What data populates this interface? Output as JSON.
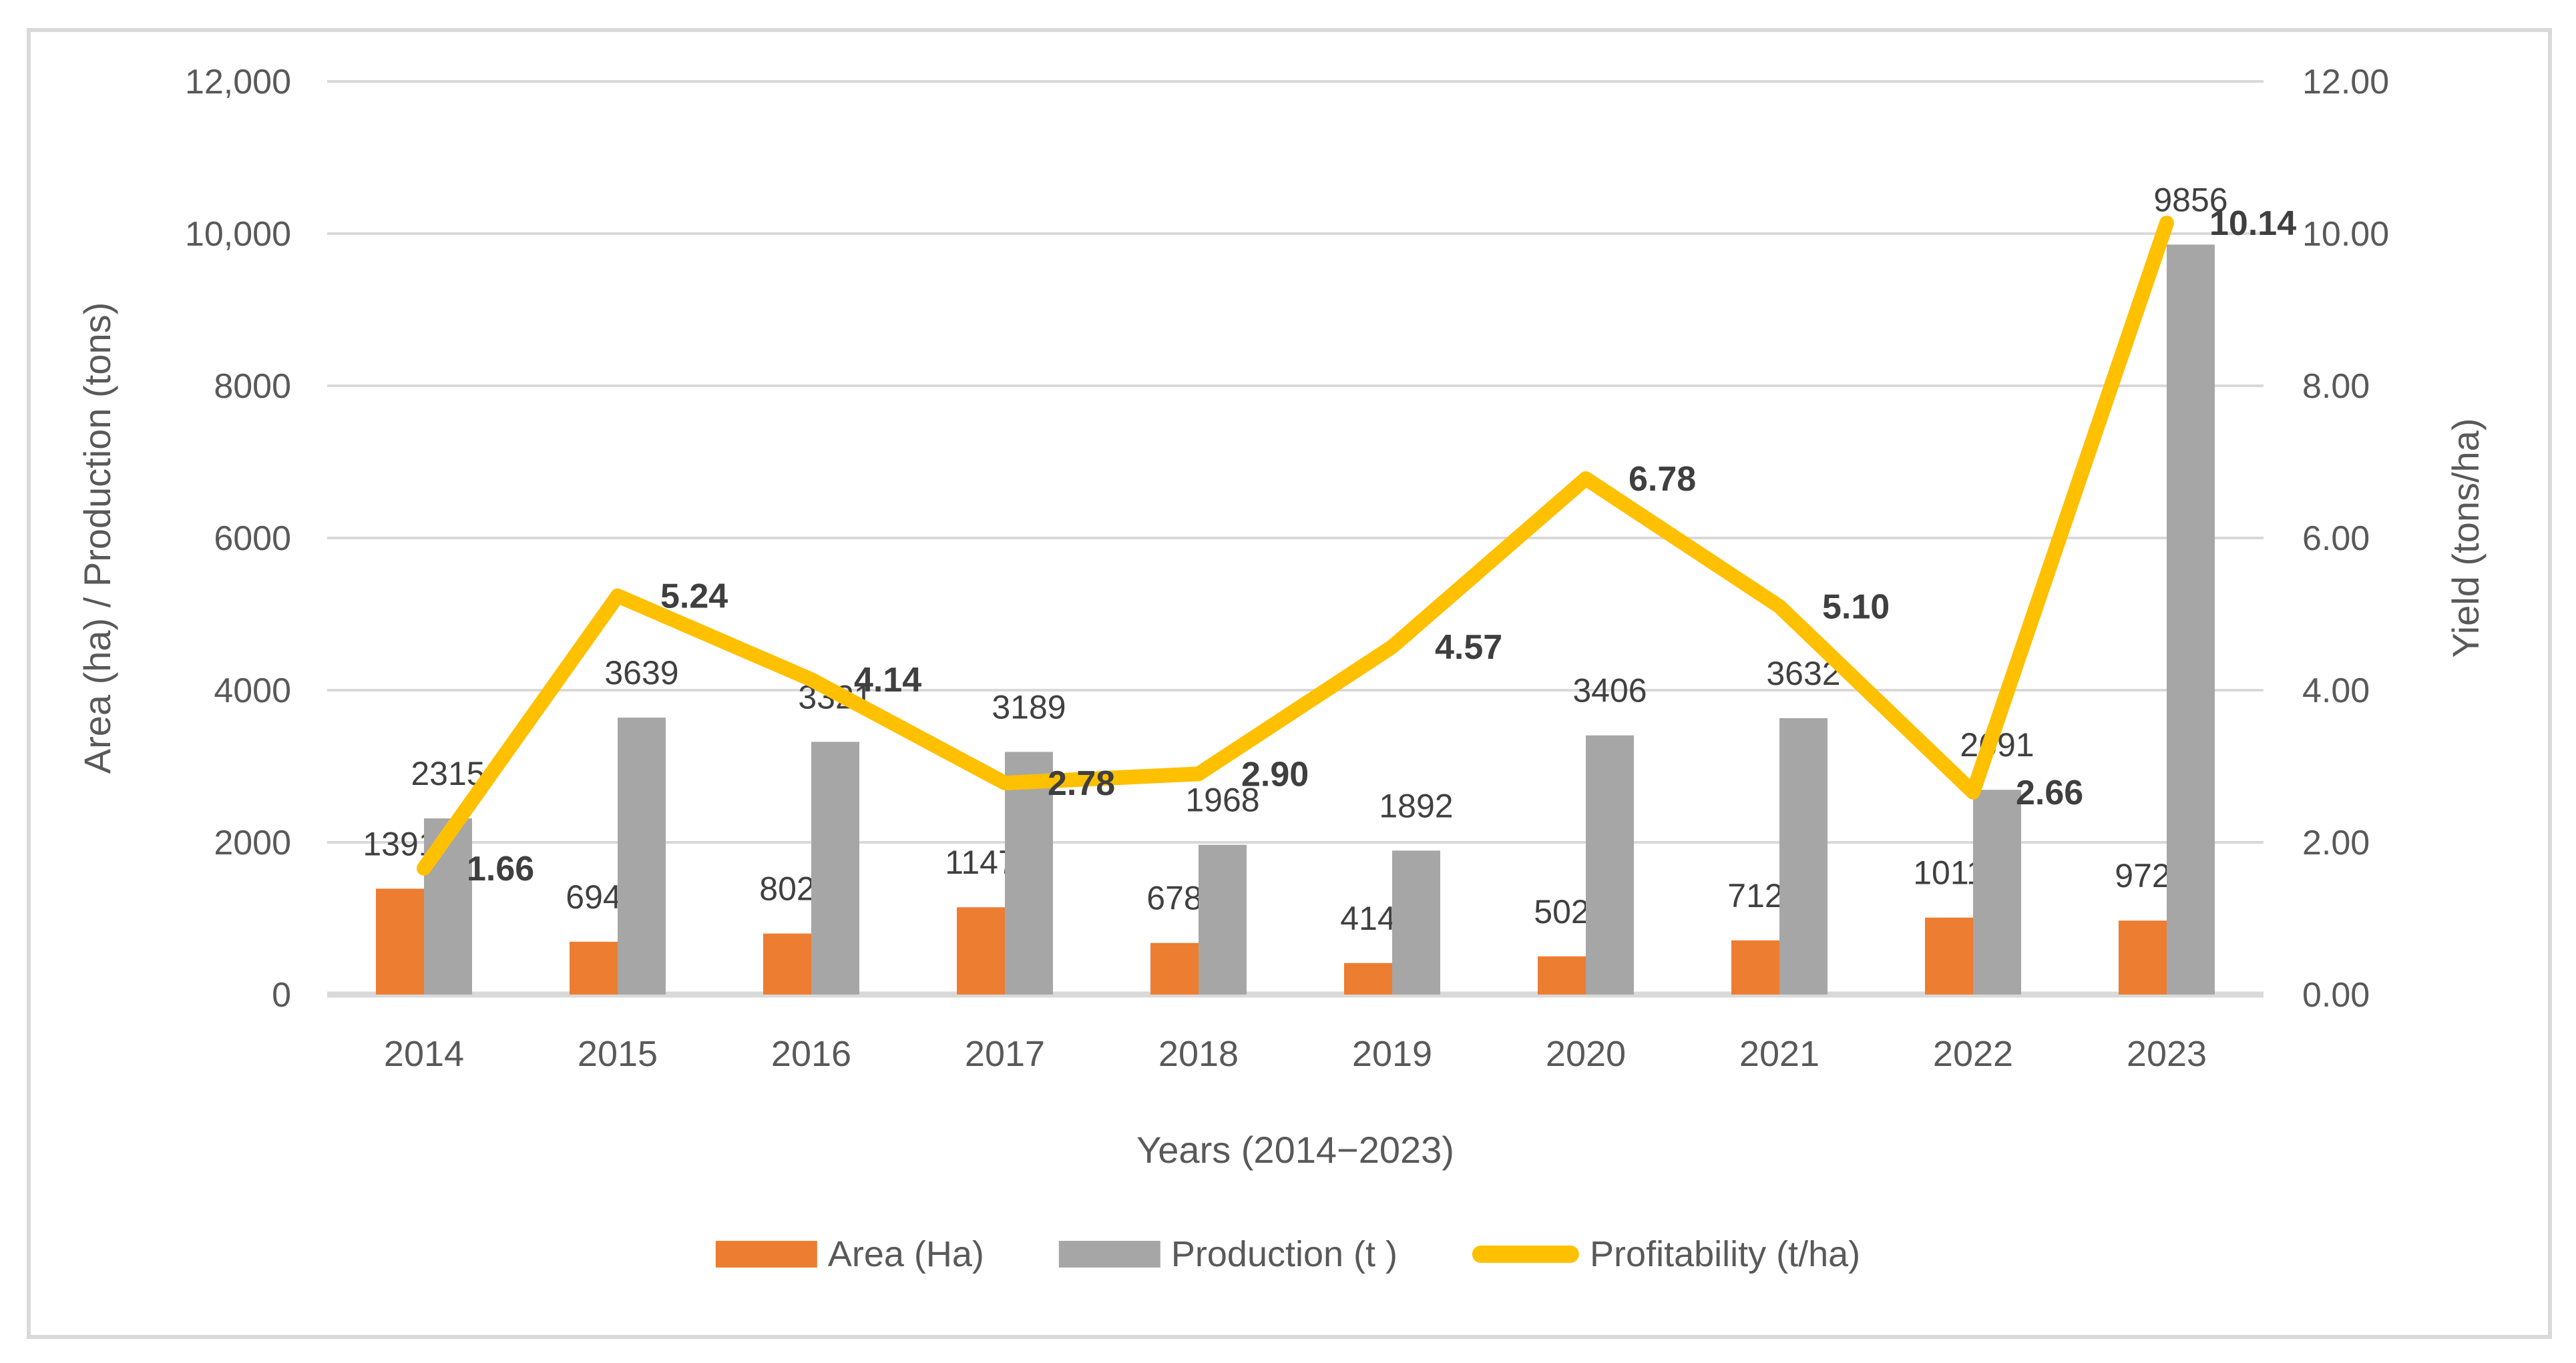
{
  "colors": {
    "area": "#ED7D31",
    "production": "#A6A6A6",
    "profitability": "#FFC000",
    "grid": "#D9D9D9",
    "axis_text": "#595959",
    "bar_label": "#404040",
    "line_label": "#3F3F3F",
    "frame_border": "#D9D9D9"
  },
  "chart_data": {
    "type": "combo-bar-line",
    "categories": [
      "2014",
      "2015",
      "2016",
      "2017",
      "2018",
      "2019",
      "2020",
      "2021",
      "2022",
      "2023"
    ],
    "series": [
      {
        "name": "Area (Ha)",
        "type": "bar",
        "axis": "left",
        "color": "#ED7D31",
        "values": [
          1391,
          694,
          802,
          1147,
          678,
          414,
          502,
          712,
          1011,
          972
        ],
        "labels": [
          "1391",
          "694",
          "802",
          "1147",
          "678",
          "414",
          "502",
          "712",
          "1011",
          "972"
        ]
      },
      {
        "name": "Production  (t )",
        "type": "bar",
        "axis": "left",
        "color": "#A6A6A6",
        "values": [
          2315,
          3639,
          3321,
          3189,
          1968,
          1892,
          3406,
          3632,
          2691,
          9856
        ],
        "labels": [
          "2315",
          "3639",
          "3321",
          "3189",
          "1968",
          "1892",
          "3406",
          "3632",
          "2691",
          "9856"
        ]
      },
      {
        "name": "Profitability (t/ha)",
        "type": "line",
        "axis": "right",
        "color": "#FFC000",
        "values": [
          1.66,
          5.24,
          4.14,
          2.78,
          2.9,
          4.57,
          6.78,
          5.1,
          2.66,
          10.14
        ],
        "labels": [
          "1.66",
          "5.24",
          "4.14",
          "2.78",
          "2.90",
          "4.57",
          "6.78",
          "5.10",
          "2.66",
          "10.14"
        ]
      }
    ],
    "left_axis": {
      "title": "Area (ha) / Production (tons)",
      "max": 12000,
      "min": 0,
      "step": 2000,
      "tick_labels": [
        "12,000",
        "10,000",
        "8000",
        "6000",
        "4000",
        "2000",
        "0"
      ]
    },
    "right_axis": {
      "title": "Yield (tons/ha)",
      "max": 12,
      "min": 0,
      "step": 2,
      "tick_labels": [
        "12.00",
        "10.00",
        "8.00",
        "6.00",
        "4.00",
        "2.00",
        "0.00"
      ]
    },
    "x_axis": {
      "title": "Years (2014−2023)"
    },
    "grid": true,
    "legend_position": "bottom"
  }
}
